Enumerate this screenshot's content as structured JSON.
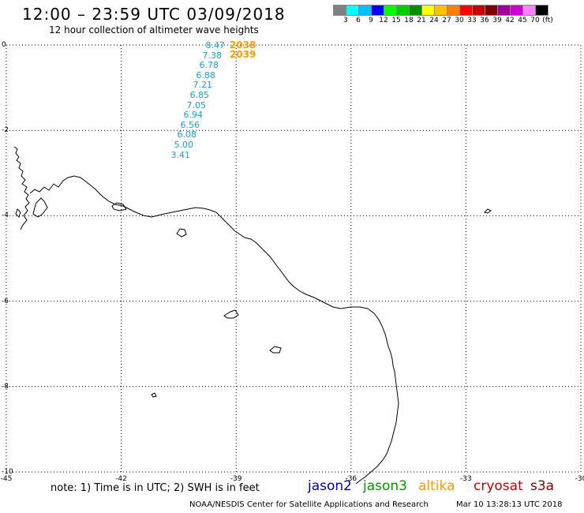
{
  "title": "12:00 – 23:59 UTC 03/09/2018",
  "subtitle": "12 hour collection of altimeter wave heights",
  "legend": {
    "colors": [
      "#808080",
      "#00ffff",
      "#00c0ff",
      "#0000ff",
      "#00ff00",
      "#00d000",
      "#009000",
      "#ffff00",
      "#ffc000",
      "#ff8000",
      "#ff0000",
      "#c80000",
      "#800000",
      "#a000a0",
      "#d000d0",
      "#ff80ff",
      "#000000"
    ],
    "labels": [
      "3",
      "6",
      "9",
      "12",
      "15",
      "18",
      "21",
      "24",
      "27",
      "30",
      "33",
      "36",
      "39",
      "42",
      "45",
      "70",
      "(ft)"
    ]
  },
  "axes": {
    "x_ticks": [
      "-45",
      "-42",
      "-39",
      "-36",
      "-33",
      "-30"
    ],
    "y_ticks": [
      "0",
      "-2",
      "-4",
      "-6",
      "-8",
      "-10"
    ],
    "lon_range": [
      -45,
      -30
    ],
    "lat_range": [
      -10,
      0
    ],
    "grid": true
  },
  "observations": {
    "swh_values": [
      "8.47",
      "7.38",
      "6.78",
      "6.88",
      "7.21",
      "6.85",
      "7.05",
      "6.94",
      "6.56",
      "6.08",
      "5.00",
      "3.41"
    ],
    "time_labels": [
      "2038",
      "2039"
    ]
  },
  "note": "note:  1) Time is in UTC;  2) SWH is in feet",
  "satellites": [
    {
      "name": "jason2",
      "color": "#0000cc"
    },
    {
      "name": "jason3",
      "color": "#009900"
    },
    {
      "name": "altika",
      "color": "#ff9900"
    },
    {
      "name": "cryosat",
      "color": "#cc0000"
    },
    {
      "name": "s3a",
      "color": "#880000"
    }
  ],
  "credit": "NOAA/NESDIS Center for Satellite Applications and Research",
  "timestamp": "Mar 10 13:28:13 UTC 2018"
}
